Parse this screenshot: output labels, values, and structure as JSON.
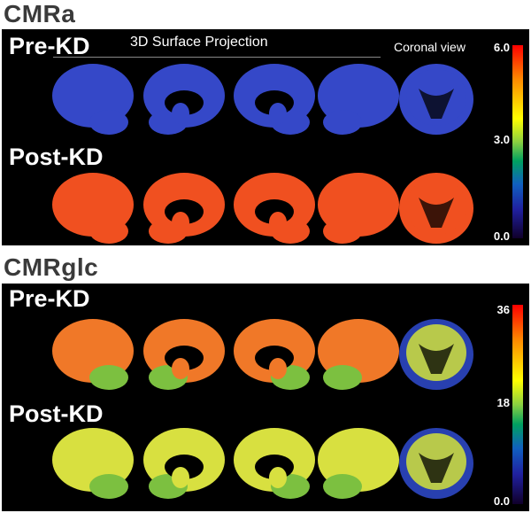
{
  "sections": [
    {
      "title": "CMRa",
      "subtitle": "3D Surface Projection",
      "coronal_label": "Coronal view",
      "rows": [
        {
          "label": "Pre-KD",
          "fill": "#3548c8",
          "hole": "#000000"
        },
        {
          "label": "Post-KD",
          "fill": "#f05020",
          "hole": "#000000"
        }
      ],
      "colorbar_ticks": [
        "6.0",
        "3.0",
        "0.0"
      ]
    },
    {
      "title": "CMRglc",
      "rows": [
        {
          "label": "Pre-KD",
          "fill": "#f07828",
          "hole": "#000000"
        },
        {
          "label": "Post-KD",
          "fill": "#d8e040",
          "hole": "#000000"
        }
      ],
      "colorbar_ticks": [
        "36",
        "18",
        "0.0"
      ]
    }
  ]
}
